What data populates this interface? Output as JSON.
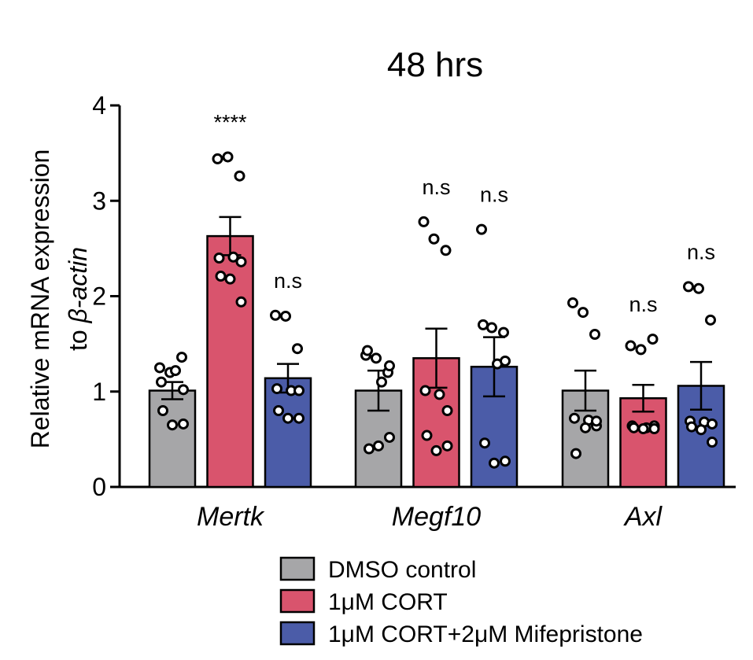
{
  "chart_data": {
    "type": "bar",
    "title": "48 hrs",
    "ylabel_line1": "Relative mRNA expression",
    "ylabel_line2_prefix": "to ",
    "ylabel_line2_italic": "β-actin",
    "ylim": [
      0,
      4
    ],
    "yticks": [
      "0",
      "1",
      "2",
      "3",
      "4"
    ],
    "categories": [
      "Mertk",
      "Megf10",
      "Axl"
    ],
    "series": [
      {
        "name": "DMSO control",
        "color": "#a6a6a8",
        "values": [
          1.01,
          1.01,
          1.01
        ],
        "sem": [
          0.09,
          0.21,
          0.21
        ],
        "significance": [
          "",
          "",
          ""
        ],
        "points": [
          [
            1.25,
            1.2,
            1.36,
            1.1,
            1.22,
            1.02,
            0.8,
            0.65,
            0.66
          ],
          [
            1.38,
            1.35,
            1.2,
            1.43,
            1.1,
            0.52,
            0.4,
            0.43,
            1.27
          ],
          [
            1.93,
            1.83,
            1.6,
            0.72,
            0.7,
            0.64,
            0.35,
            0.62,
            0.69
          ]
        ]
      },
      {
        "name": "1μM CORT",
        "color": "#d9546d",
        "values": [
          2.63,
          1.35,
          0.93
        ],
        "sem": [
          0.2,
          0.31,
          0.14
        ],
        "significance": [
          "****",
          "n.s",
          "n.s"
        ],
        "points": [
          [
            3.44,
            3.46,
            3.26,
            2.4,
            2.41,
            2.36,
            2.21,
            2.18,
            1.94
          ],
          [
            2.78,
            2.6,
            2.48,
            1.01,
            0.97,
            0.8,
            0.54,
            0.38,
            0.43
          ],
          [
            1.48,
            1.44,
            1.55,
            0.64,
            0.62,
            0.64,
            0.62,
            0.61,
            0.61
          ]
        ]
      },
      {
        "name": "1μM CORT+2μM Mifepristone",
        "color": "#4b5ca8",
        "values": [
          1.14,
          1.26,
          1.06
        ],
        "sem": [
          0.15,
          0.31,
          0.25
        ],
        "significance": [
          "n.s",
          "n.s",
          "n.s"
        ],
        "points": [
          [
            1.8,
            1.79,
            1.45,
            1.03,
            1.01,
            1.01,
            0.8,
            0.72,
            0.72
          ],
          [
            2.7,
            1.67,
            1.62,
            1.7,
            1.29,
            1.32,
            0.46,
            0.25,
            0.27
          ],
          [
            2.1,
            2.08,
            1.75,
            0.69,
            0.68,
            0.66,
            0.63,
            0.6,
            0.47
          ]
        ]
      }
    ],
    "legend_position": "bottom-center",
    "grid": false
  }
}
